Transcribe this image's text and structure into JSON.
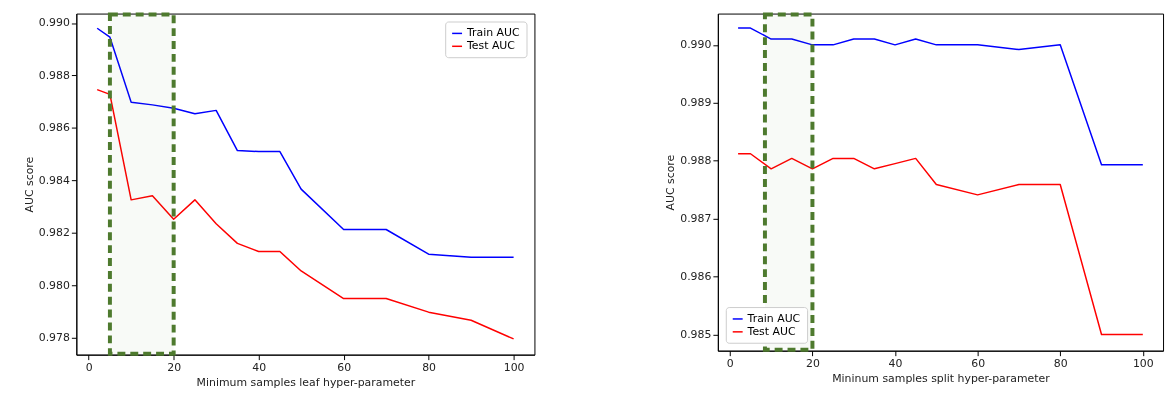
{
  "chart_data": [
    {
      "type": "line",
      "xlabel": "Minimum samples leaf hyper-parameter",
      "ylabel": "AUC score",
      "x": [
        2,
        5,
        10,
        15,
        20,
        25,
        30,
        35,
        40,
        45,
        50,
        60,
        70,
        80,
        90,
        100
      ],
      "series": [
        {
          "name": "Train AUC",
          "color": "#0000ff",
          "values": [
            0.9898,
            0.98946,
            0.98698,
            0.98688,
            0.98675,
            0.98654,
            0.98667,
            0.98514,
            0.9851,
            0.9851,
            0.98367,
            0.98213,
            0.98213,
            0.98119,
            0.98107,
            0.98107
          ]
        },
        {
          "name": "Test AUC",
          "color": "#ff0000",
          "values": [
            0.98746,
            0.98728,
            0.98326,
            0.98342,
            0.98252,
            0.98326,
            0.98235,
            0.9816,
            0.98129,
            0.98129,
            0.98055,
            0.9795,
            0.9795,
            0.97898,
            0.97867,
            0.97796
          ]
        }
      ],
      "xlim": [
        -2.9,
        104.9
      ],
      "xticks": [
        0,
        20,
        40,
        60,
        80,
        100
      ],
      "ylim": [
        0.97736,
        0.99036
      ],
      "yticks": [
        {
          "value": 0.978,
          "label": "0.978"
        },
        {
          "value": 0.98,
          "label": "0.980"
        },
        {
          "value": 0.982,
          "label": "0.982"
        },
        {
          "value": 0.984,
          "label": "0.984"
        },
        {
          "value": 0.986,
          "label": "0.986"
        },
        {
          "value": 0.988,
          "label": "0.988"
        },
        {
          "value": 0.99,
          "label": "0.990"
        }
      ],
      "bands": [
        {
          "axis": "x",
          "from": 5,
          "to": 20,
          "color": "#4e7a2e"
        }
      ],
      "legend": "top right",
      "grid": false,
      "line_style": "solid",
      "marker": "none"
    },
    {
      "type": "line",
      "xlabel": "Mininum samples split hyper-parameter",
      "ylabel": "AUC score",
      "x": [
        2,
        5,
        10,
        15,
        20,
        25,
        30,
        35,
        40,
        45,
        50,
        60,
        70,
        80,
        90,
        100
      ],
      "series": [
        {
          "name": "Train AUC",
          "color": "#0000ff",
          "values": [
            0.99029,
            0.99029,
            0.9901,
            0.9901,
            0.99,
            0.99,
            0.9901,
            0.9901,
            0.99,
            0.9901,
            0.99,
            0.99,
            0.98992,
            0.99,
            0.98793,
            0.98793
          ]
        },
        {
          "name": "Test AUC",
          "color": "#ff0000",
          "values": [
            0.98812,
            0.98812,
            0.98786,
            0.98804,
            0.98786,
            0.98804,
            0.98804,
            0.98786,
            0.98795,
            0.98804,
            0.98759,
            0.98741,
            0.98759,
            0.98759,
            0.985,
            0.985
          ]
        }
      ],
      "xlim": [
        -2.9,
        104.9
      ],
      "xticks": [
        0,
        20,
        40,
        60,
        80,
        100
      ],
      "ylim": [
        0.98472,
        0.99054
      ],
      "yticks": [
        {
          "value": 0.985,
          "label": "0.985"
        },
        {
          "value": 0.986,
          "label": "0.986"
        },
        {
          "value": 0.987,
          "label": "0.987"
        },
        {
          "value": 0.988,
          "label": "0.988"
        },
        {
          "value": 0.989,
          "label": "0.989"
        },
        {
          "value": 0.99,
          "label": "0.990"
        }
      ],
      "bands": [
        {
          "axis": "x",
          "from": 8.5,
          "to": 20,
          "color": "#4e7a2e"
        }
      ],
      "legend": "bottom left",
      "grid": false,
      "line_style": "solid",
      "marker": "none"
    }
  ]
}
